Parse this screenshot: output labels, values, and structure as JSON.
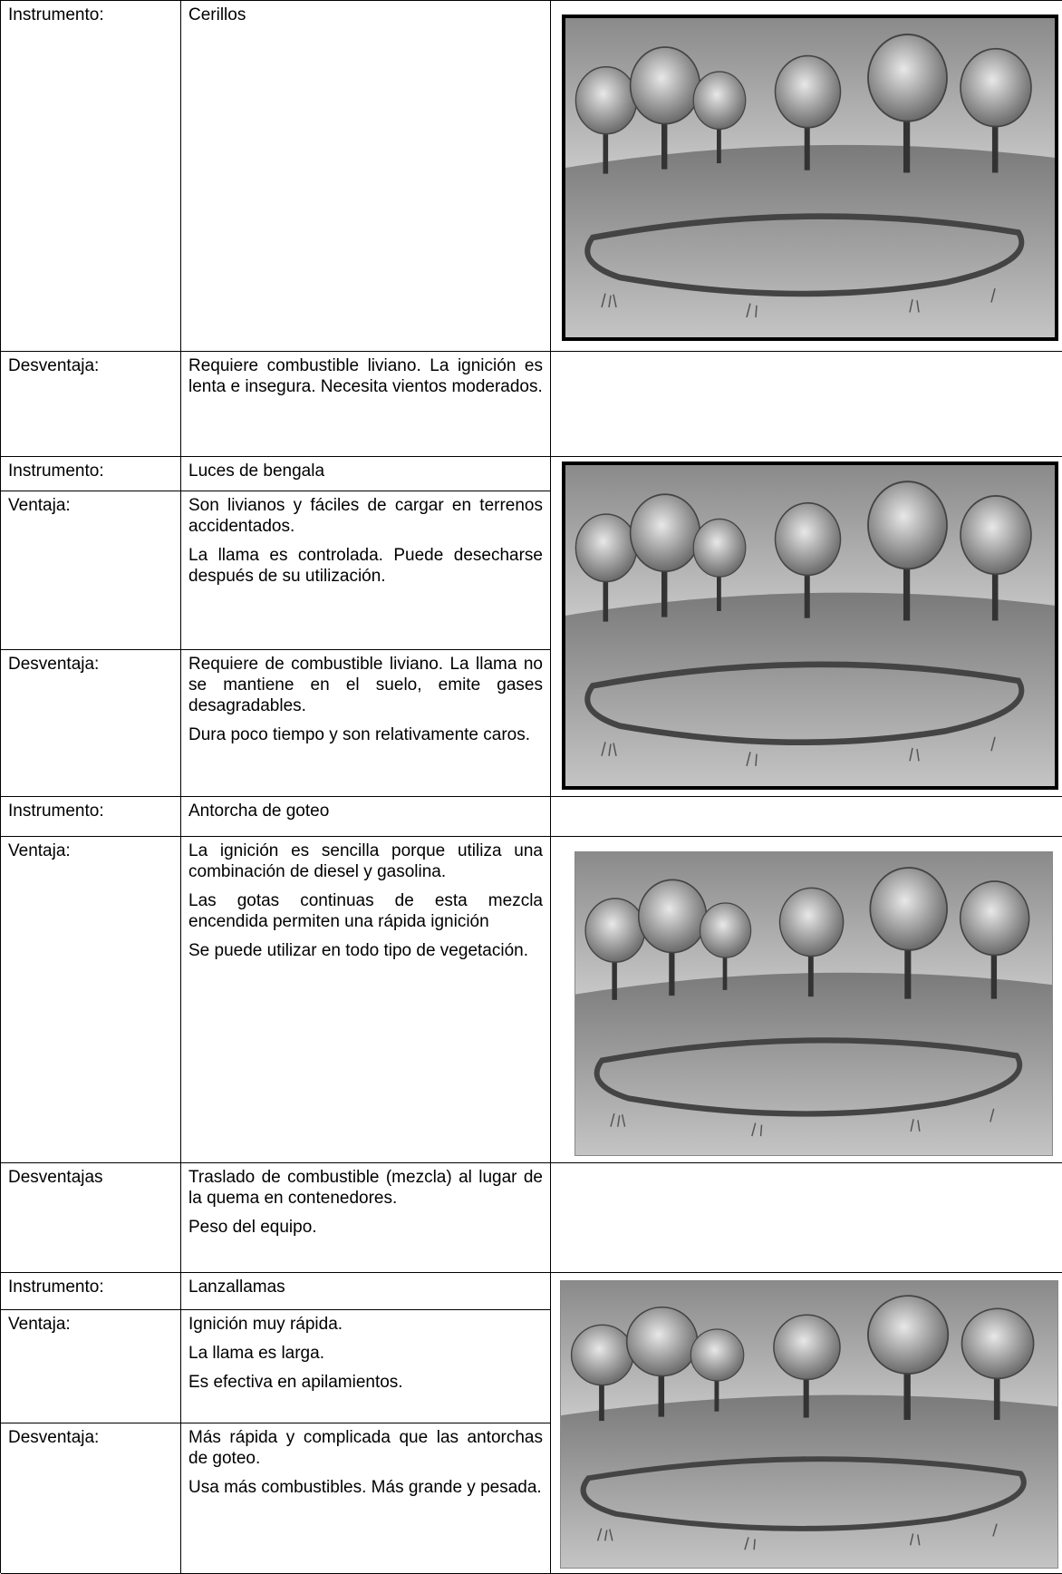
{
  "rows": [
    {
      "label": "Instrumento:",
      "text": [
        "Cerillos"
      ]
    },
    {
      "label": "Desventaja:",
      "text": [
        "Requiere combustible liviano. La ignición es lenta e insegura. Necesita vientos moderados."
      ]
    },
    {
      "label": "Instrumento:",
      "text": [
        "Luces de bengala"
      ]
    },
    {
      "label": "Ventaja:",
      "text": [
        "Son livianos y fáciles de cargar en terrenos accidentados.",
        "La llama es controlada. Puede desecharse después de su utilización."
      ]
    },
    {
      "label": "Desventaja:",
      "text": [
        "Requiere de combustible liviano. La llama no se mantiene en el suelo, emite gases desagradables.",
        "Dura poco tiempo y son relativamente caros."
      ]
    },
    {
      "label": "Instrumento:",
      "text": [
        "Antorcha de goteo"
      ]
    },
    {
      "label": "Ventaja:",
      "text": [
        "La ignición es sencilla porque utiliza una combinación de diesel y gasolina.",
        "Las gotas continuas de esta mezcla encendida permiten una rápida ignición",
        "Se puede utilizar en todo tipo de vegetación."
      ]
    },
    {
      "label": "Desventajas",
      "text": [
        "Traslado de combustible (mezcla) al lugar de la quema en contenedores.",
        "Peso del equipo."
      ]
    },
    {
      "label": "Instrumento:",
      "text": [
        "Lanzallamas"
      ]
    },
    {
      "label": "Ventaja:",
      "text": [
        "Ignición muy rápida.",
        "La llama es larga.",
        "Es efectiva en apilamientos."
      ]
    },
    {
      "label": "Desventaja:",
      "text": [
        "Más rápida y complicada que las antorchas de goteo.",
        "Usa más combustibles. Más grande y pesada."
      ]
    }
  ]
}
